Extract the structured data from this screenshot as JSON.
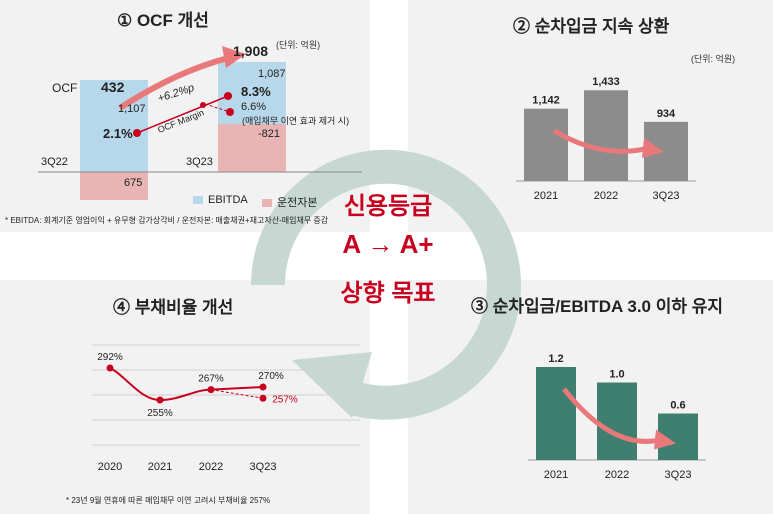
{
  "center": {
    "line1": "신용등급",
    "line2": "A → A+",
    "line3": "상향 목표"
  },
  "colors": {
    "ebitda": "#b7d7ea",
    "wc": "#e8b4b4",
    "gray": "#8c8c8c",
    "green": "#3f7f6f",
    "red": "#c8001f",
    "arrow": "#e8787a"
  },
  "panel1": {
    "title": "① OCF 개선",
    "unit": "(단위: 억원)",
    "ocf_label": "OCF",
    "periods": [
      "3Q22",
      "3Q23"
    ],
    "ocf_values": [
      "432",
      "1,908"
    ],
    "ebitda_values": [
      "1,107",
      "1,087"
    ],
    "wc_values": [
      "675",
      "-821"
    ],
    "margins": [
      "2.1%",
      "8.3%"
    ],
    "margin_alt": "6.6%",
    "margin_alt_note": "(매입채무 이연 효과 제거 시)",
    "margin_change": "+6.2%p",
    "margin_name": "OCF Margin",
    "legend": [
      "EBITDA",
      "운전자본"
    ],
    "footnote": "* EBITDA: 회계기준 영업이익 + 유무형 감가상각비 / 운전자본: 매출채권+재고자산-매입채무 증감"
  },
  "panel2": {
    "title": "② 순차입금 지속 상환",
    "unit": "(단위: 억원)",
    "chart_data": {
      "type": "bar",
      "categories": [
        "2021",
        "2022",
        "3Q23"
      ],
      "values": [
        1142,
        1433,
        934
      ],
      "labels": [
        "1,142",
        "1,433",
        "934"
      ]
    }
  },
  "panel3": {
    "title": "③ 순차입금/EBITDA 3.0 이하 유지",
    "chart_data": {
      "type": "bar",
      "categories": [
        "2021",
        "2022",
        "3Q23"
      ],
      "values": [
        1.2,
        1.0,
        0.6
      ],
      "labels": [
        "1.2",
        "1.0",
        "0.6"
      ]
    }
  },
  "panel4": {
    "title": "④ 부채비율 개선",
    "footnote": "* 23년 9월 연휴에 따른 매입채무 이연 고려시 부채비율 257%",
    "chart_data": {
      "type": "line",
      "categories": [
        "2020",
        "2021",
        "2022",
        "3Q23"
      ],
      "values": [
        292,
        255,
        267,
        270
      ],
      "labels": [
        "292%",
        "255%",
        "267%",
        "270%"
      ],
      "alt_value": 257,
      "alt_label": "257%"
    }
  }
}
